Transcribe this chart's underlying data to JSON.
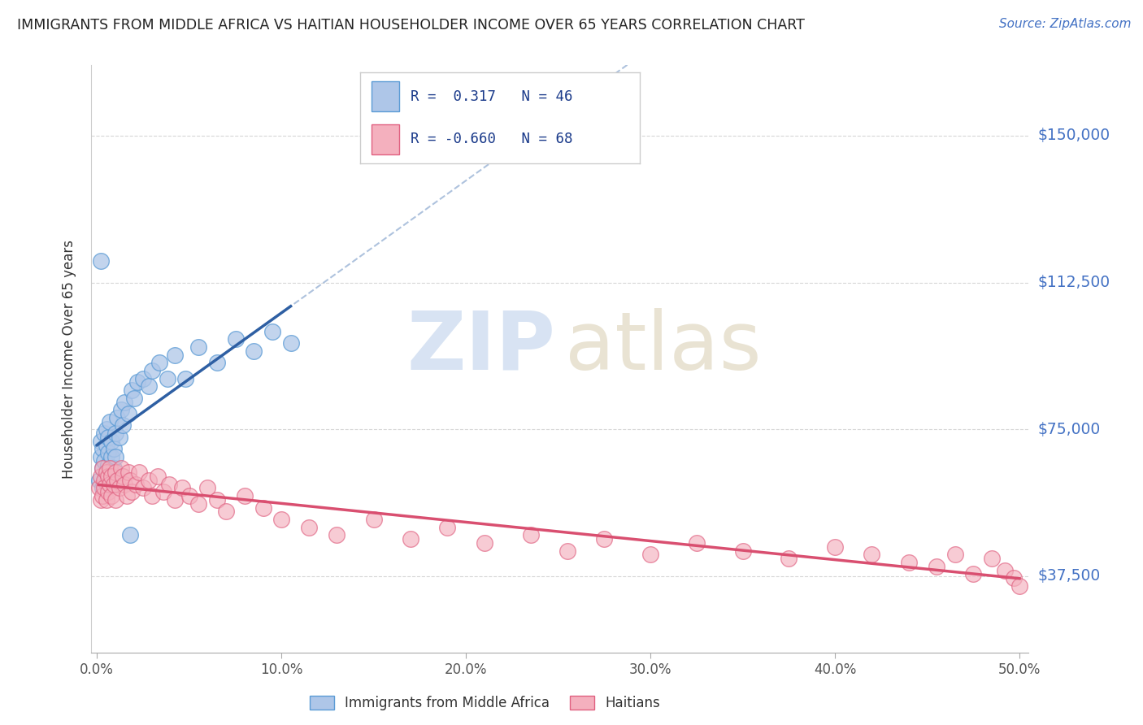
{
  "title": "IMMIGRANTS FROM MIDDLE AFRICA VS HAITIAN HOUSEHOLDER INCOME OVER 65 YEARS CORRELATION CHART",
  "source": "Source: ZipAtlas.com",
  "ylabel": "Householder Income Over 65 years",
  "ytick_labels": [
    "$37,500",
    "$75,000",
    "$112,500",
    "$150,000"
  ],
  "ytick_values": [
    37500,
    75000,
    112500,
    150000
  ],
  "ylim": [
    18000,
    168000
  ],
  "xlim": [
    -0.003,
    0.505
  ],
  "blue_color_fill": "#aec6e8",
  "blue_color_edge": "#5b9bd5",
  "pink_color_fill": "#f4b0be",
  "pink_color_edge": "#e06080",
  "blue_line_color": "#2e5fa3",
  "pink_line_color": "#d94f70",
  "dash_line_color": "#a0b8d8",
  "grid_color": "#cccccc",
  "title_color": "#222222",
  "source_color": "#4472c4",
  "ytick_color": "#4472c4",
  "blue_scatter_x": [
    0.001,
    0.002,
    0.002,
    0.003,
    0.003,
    0.004,
    0.004,
    0.005,
    0.005,
    0.005,
    0.006,
    0.006,
    0.006,
    0.007,
    0.007,
    0.008,
    0.008,
    0.009,
    0.009,
    0.01,
    0.01,
    0.011,
    0.012,
    0.013,
    0.014,
    0.015,
    0.017,
    0.019,
    0.02,
    0.022,
    0.025,
    0.028,
    0.03,
    0.034,
    0.038,
    0.042,
    0.048,
    0.055,
    0.065,
    0.075,
    0.085,
    0.095,
    0.105,
    0.002,
    0.003,
    0.018
  ],
  "blue_scatter_y": [
    62000,
    68000,
    72000,
    65000,
    70000,
    67000,
    74000,
    63000,
    71000,
    75000,
    66000,
    69000,
    73000,
    64000,
    77000,
    68000,
    72000,
    70000,
    65000,
    74000,
    68000,
    78000,
    73000,
    80000,
    76000,
    82000,
    79000,
    85000,
    83000,
    87000,
    88000,
    86000,
    90000,
    92000,
    88000,
    94000,
    88000,
    96000,
    92000,
    98000,
    95000,
    100000,
    97000,
    118000,
    60000,
    48000
  ],
  "pink_scatter_x": [
    0.001,
    0.002,
    0.002,
    0.003,
    0.003,
    0.004,
    0.004,
    0.005,
    0.005,
    0.006,
    0.006,
    0.007,
    0.007,
    0.008,
    0.008,
    0.009,
    0.01,
    0.01,
    0.011,
    0.012,
    0.013,
    0.014,
    0.015,
    0.016,
    0.017,
    0.018,
    0.019,
    0.021,
    0.023,
    0.025,
    0.028,
    0.03,
    0.033,
    0.036,
    0.039,
    0.042,
    0.046,
    0.05,
    0.055,
    0.06,
    0.065,
    0.07,
    0.08,
    0.09,
    0.1,
    0.115,
    0.13,
    0.15,
    0.17,
    0.19,
    0.21,
    0.235,
    0.255,
    0.275,
    0.3,
    0.325,
    0.35,
    0.375,
    0.4,
    0.42,
    0.44,
    0.455,
    0.465,
    0.475,
    0.485,
    0.492,
    0.497,
    0.5
  ],
  "pink_scatter_y": [
    60000,
    63000,
    57000,
    65000,
    58000,
    62000,
    60000,
    64000,
    57000,
    63000,
    59000,
    61000,
    65000,
    58000,
    63000,
    61000,
    64000,
    57000,
    62000,
    60000,
    65000,
    63000,
    61000,
    58000,
    64000,
    62000,
    59000,
    61000,
    64000,
    60000,
    62000,
    58000,
    63000,
    59000,
    61000,
    57000,
    60000,
    58000,
    56000,
    60000,
    57000,
    54000,
    58000,
    55000,
    52000,
    50000,
    48000,
    52000,
    47000,
    50000,
    46000,
    48000,
    44000,
    47000,
    43000,
    46000,
    44000,
    42000,
    45000,
    43000,
    41000,
    40000,
    43000,
    38000,
    42000,
    39000,
    37000,
    35000
  ]
}
